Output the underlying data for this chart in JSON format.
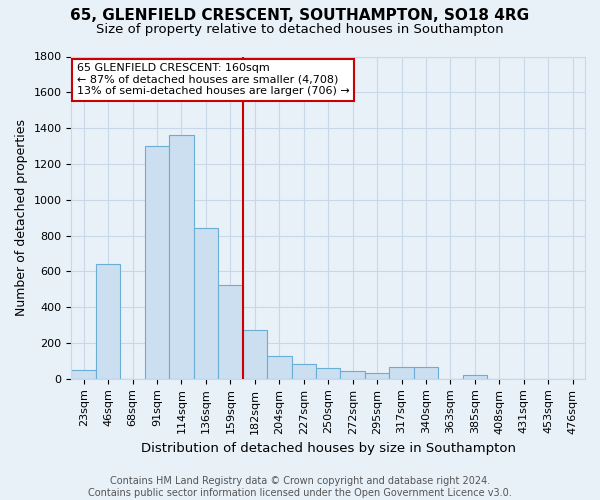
{
  "title": "65, GLENFIELD CRESCENT, SOUTHAMPTON, SO18 4RG",
  "subtitle": "Size of property relative to detached houses in Southampton",
  "xlabel": "Distribution of detached houses by size in Southampton",
  "ylabel": "Number of detached properties",
  "categories": [
    "23sqm",
    "46sqm",
    "68sqm",
    "91sqm",
    "114sqm",
    "136sqm",
    "159sqm",
    "182sqm",
    "204sqm",
    "227sqm",
    "250sqm",
    "272sqm",
    "295sqm",
    "317sqm",
    "340sqm",
    "363sqm",
    "385sqm",
    "408sqm",
    "431sqm",
    "453sqm",
    "476sqm"
  ],
  "values": [
    50,
    640,
    0,
    1300,
    1360,
    840,
    525,
    270,
    130,
    80,
    60,
    45,
    30,
    65,
    65,
    0,
    20,
    0,
    0,
    0,
    0
  ],
  "bar_color": "#ccdff0",
  "bar_edge_color": "#6aaed6",
  "vline_x_index": 6,
  "vline_color": "#cc0000",
  "annotation_text": "65 GLENFIELD CRESCENT: 160sqm\n← 87% of detached houses are smaller (4,708)\n13% of semi-detached houses are larger (706) →",
  "annotation_box_color": "white",
  "annotation_box_edge_color": "#cc0000",
  "ylim": [
    0,
    1800
  ],
  "yticks": [
    0,
    200,
    400,
    600,
    800,
    1000,
    1200,
    1400,
    1600,
    1800
  ],
  "grid_color": "#c8d8e8",
  "bg_color": "#e8f0f8",
  "footer": "Contains HM Land Registry data © Crown copyright and database right 2024.\nContains public sector information licensed under the Open Government Licence v3.0.",
  "title_fontsize": 11,
  "subtitle_fontsize": 9.5,
  "xlabel_fontsize": 9.5,
  "ylabel_fontsize": 9,
  "footer_fontsize": 7,
  "tick_fontsize": 8,
  "annotation_fontsize": 8
}
